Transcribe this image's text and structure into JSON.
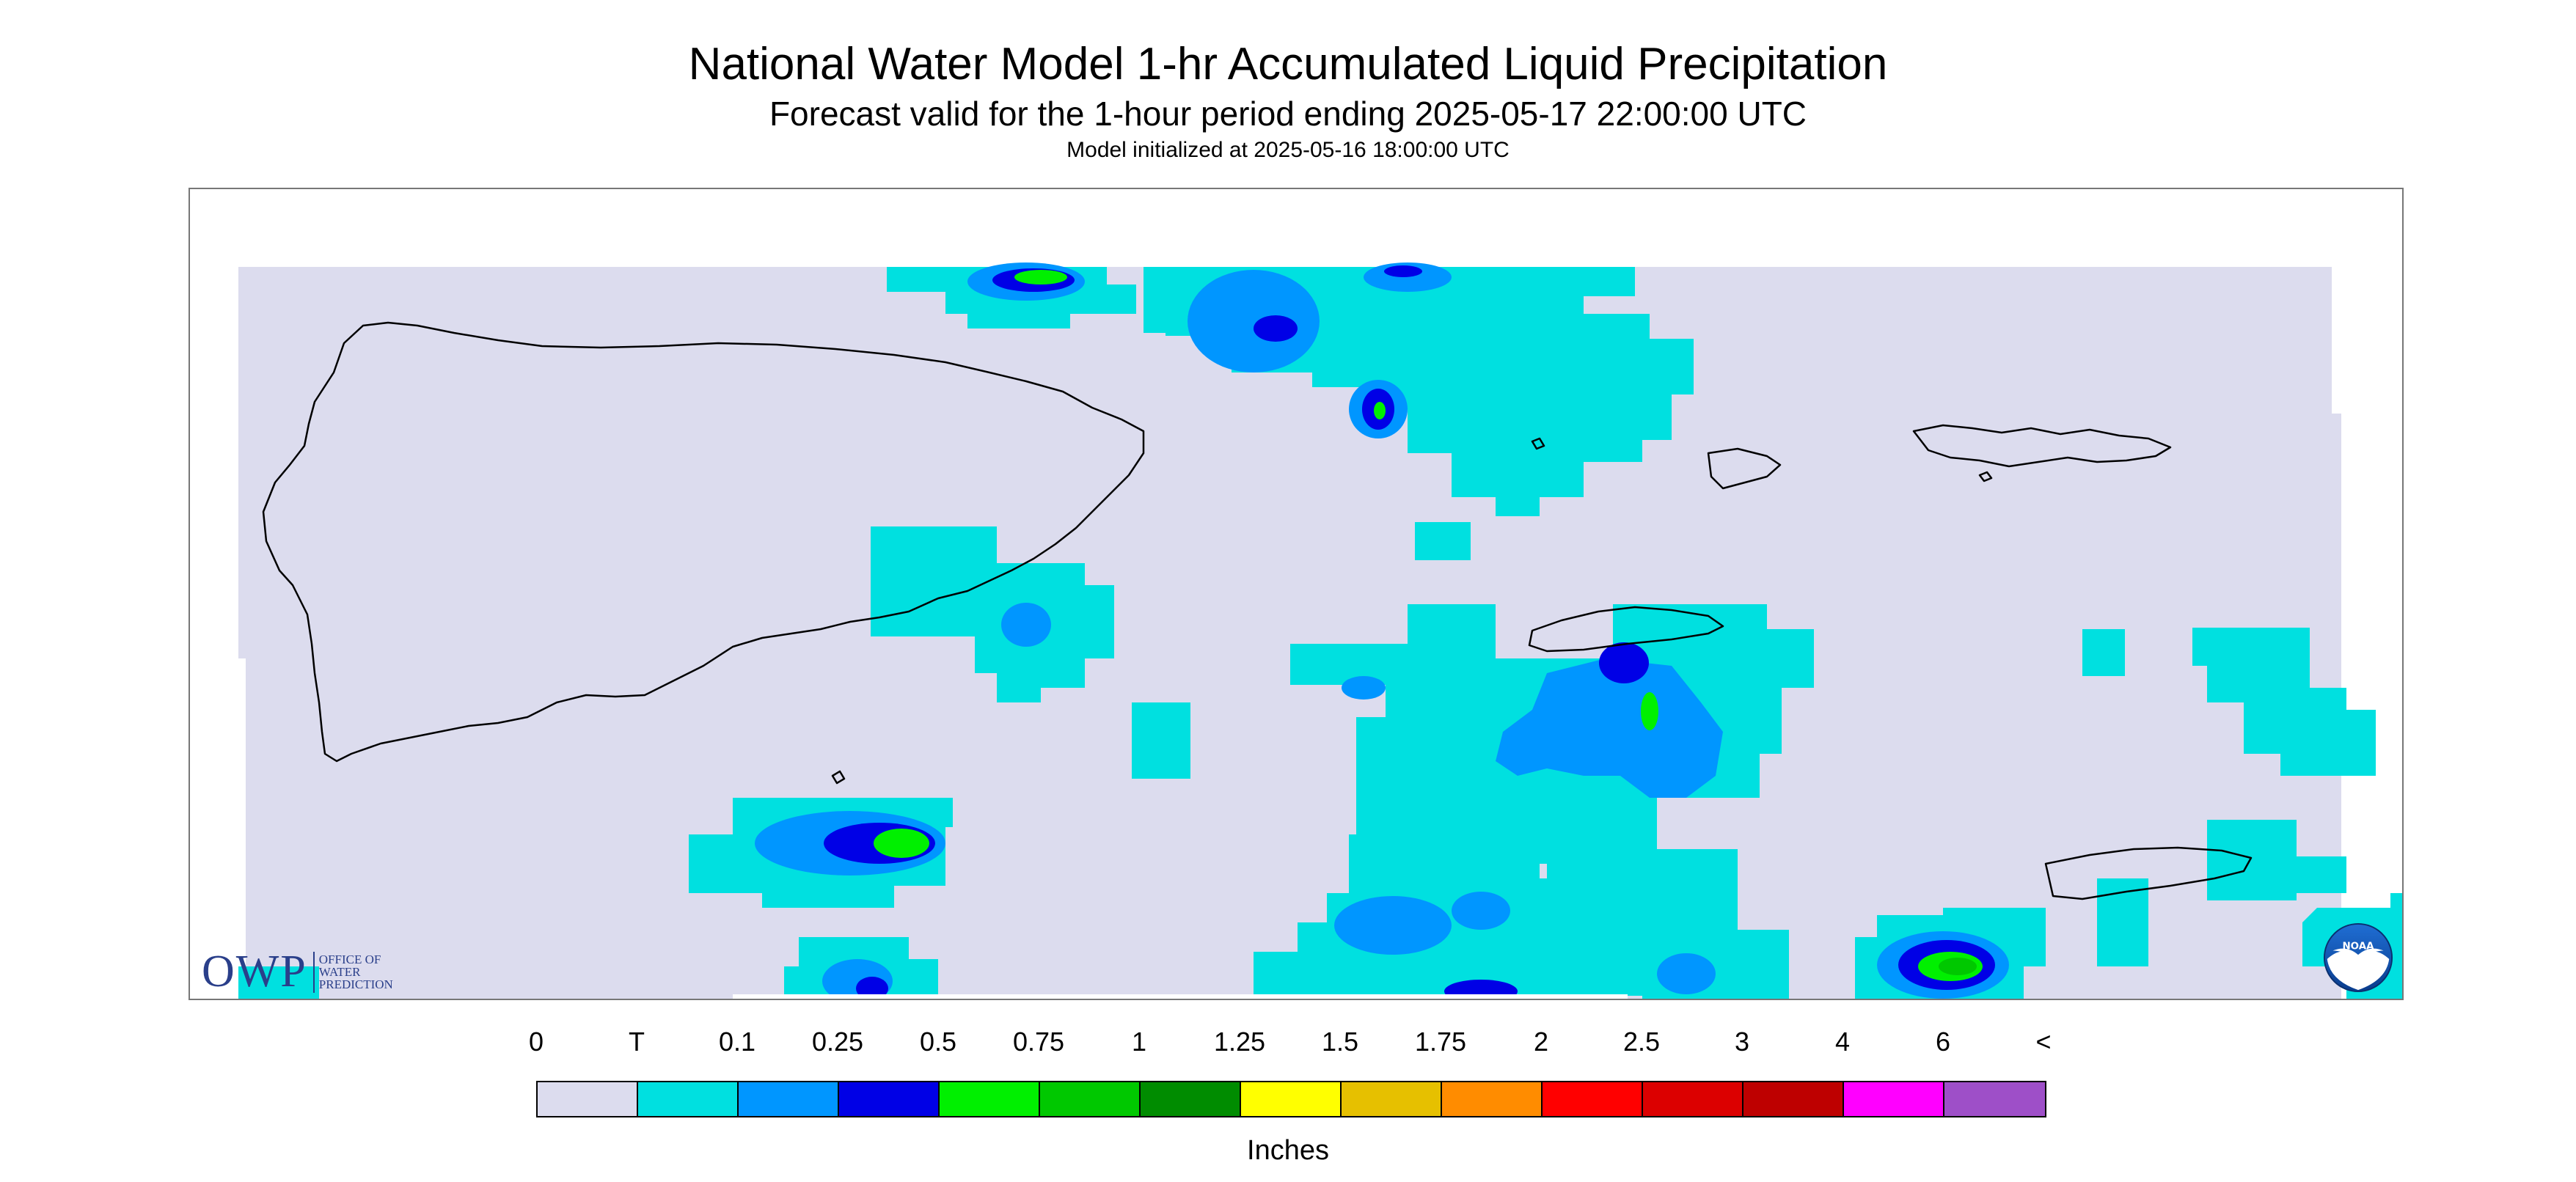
{
  "title": "National Water Model 1-hr Accumulated Liquid Precipitation",
  "subtitle": "Forecast valid for the 1-hour period ending 2025-05-17 22:00:00 UTC",
  "init_line": "Model initialized at 2025-05-16 18:00:00 UTC",
  "logos": {
    "owp": {
      "letters": "OWP",
      "name_lines": [
        "OFFICE OF",
        "WATER",
        "PREDICTION"
      ],
      "color": "#2a3f8a"
    },
    "noaa": {
      "text": "NOAA",
      "icon": "noaa-seagull-icon"
    }
  },
  "map": {
    "region_background_color": "#dcdcee",
    "precip_color_levels": [
      "#00e0e0",
      "#0096ff",
      "#0000e6",
      "#00f000",
      "#00c800"
    ]
  },
  "legend": {
    "labels": [
      "0",
      "T",
      "0.1",
      "0.25",
      "0.5",
      "0.75",
      "1",
      "1.25",
      "1.5",
      "1.75",
      "2",
      "2.5",
      "3",
      "4",
      "6",
      "<"
    ],
    "colors": [
      "#dcdcee",
      "#00e0e0",
      "#0096ff",
      "#0000e6",
      "#00f000",
      "#00c800",
      "#008c00",
      "#ffff00",
      "#e6c000",
      "#ff8c00",
      "#ff0000",
      "#dc0000",
      "#be0000",
      "#ff00ff",
      "#9e4fc8"
    ],
    "units": "Inches"
  }
}
